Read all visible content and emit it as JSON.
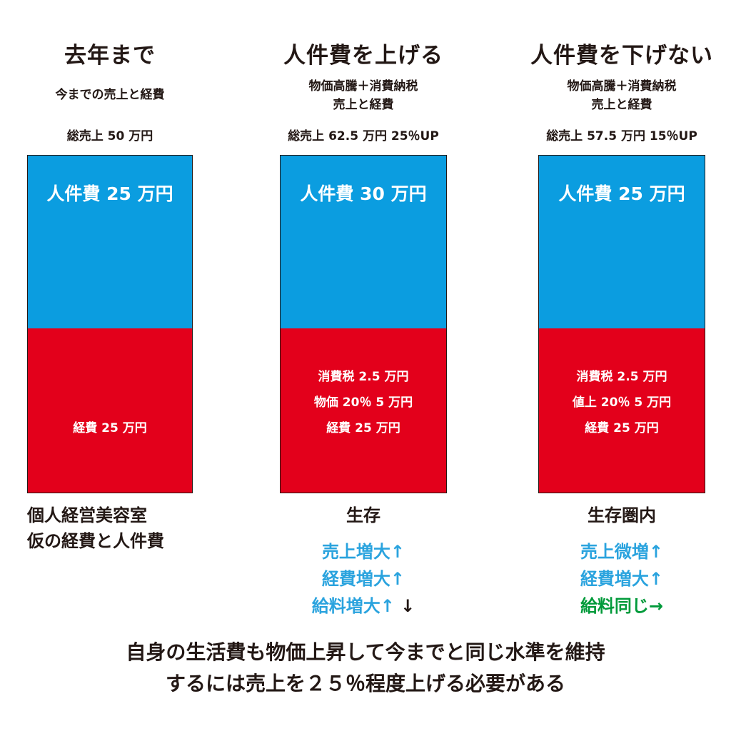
{
  "colors": {
    "labor": "#0b9de0",
    "cost": "#e3001b",
    "effect_up": "#2aa3de",
    "effect_same": "#009a3a",
    "text": "#231815"
  },
  "chart_data": {
    "type": "bar",
    "stacked": true,
    "categories": [
      "去年まで",
      "人件費を上げる",
      "人件費を下げない"
    ],
    "series": [
      {
        "name": "人件費",
        "values": [
          25,
          30,
          25
        ]
      },
      {
        "name": "経費",
        "values": [
          25,
          32.5,
          32.5
        ]
      }
    ],
    "title": "",
    "xlabel": "",
    "ylabel": ""
  },
  "columns": [
    {
      "title": "去年まで",
      "subtitle_lines": [
        "今までの売上と経費"
      ],
      "total": "総売上 50 万円",
      "labor_label": "人件費 25 万円",
      "cost_lines": [
        "経費 25 万円"
      ],
      "caption_lines": [
        "個人経営美容室",
        "仮の経費と人件費"
      ],
      "effects": []
    },
    {
      "title": "人件費を上げる",
      "subtitle_lines": [
        "物価高騰＋消費納税",
        "売上と経費"
      ],
      "total": "総売上 62.5 万円 25％UP",
      "labor_label": "人件費 30 万円",
      "cost_lines": [
        "消費税 2.5 万円",
        "物価 20％ 5 万円",
        "経費 25 万円"
      ],
      "caption_lines": [
        "生存"
      ],
      "effects": [
        {
          "text": "売上増大↑",
          "tail": ""
        },
        {
          "text": "経費増大↑",
          "tail": ""
        },
        {
          "text": "給料増大↑",
          "tail": " ↓"
        }
      ]
    },
    {
      "title": "人件費を下げない",
      "subtitle_lines": [
        "物価高騰＋消費納税",
        "売上と経費"
      ],
      "total": "総売上 57.5 万円 15％UP",
      "labor_label": "人件費 25 万円",
      "cost_lines": [
        "消費税 2.5 万円",
        "値上 20％ 5 万円",
        "経費 25 万円"
      ],
      "caption_lines": [
        "生存圏内"
      ],
      "effects": [
        {
          "text": "売上微増↑",
          "tail": ""
        },
        {
          "text": "経費増大↑",
          "tail": ""
        },
        {
          "text": "給料同じ→",
          "tail": ""
        }
      ]
    }
  ],
  "conclusion": [
    "自身の生活費も物価上昇して今までと同じ水準を維持",
    "するには売上を２５％程度上げる必要がある"
  ]
}
